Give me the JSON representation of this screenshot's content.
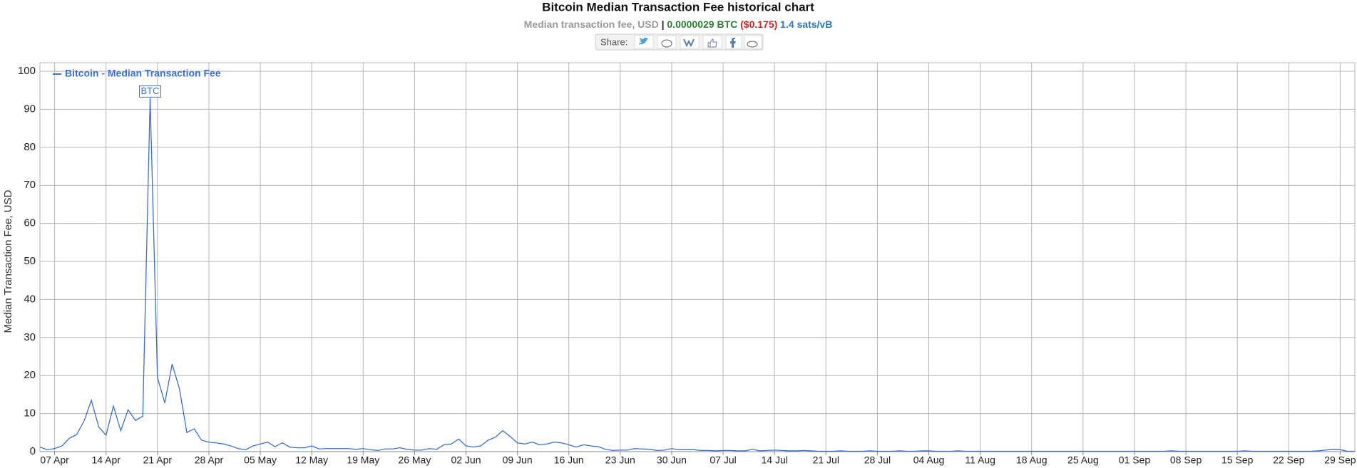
{
  "chart_data": {
    "type": "line",
    "title": "Bitcoin Median Transaction Fee historical chart",
    "subtitle": {
      "label": "Median transaction fee, USD",
      "separator": "|",
      "btc": "0.0000029 BTC",
      "usd": "($0.175)",
      "sats": "1.4 sats/vB"
    },
    "share": "Share:",
    "y_label": "Median Transaction Fee, USD",
    "annotation": "BTC",
    "categories": [
      null,
      null,
      "07 Apr",
      null,
      null,
      null,
      null,
      null,
      null,
      "14 Apr",
      null,
      null,
      null,
      null,
      null,
      null,
      "21 Apr",
      null,
      null,
      null,
      null,
      null,
      null,
      "28 Apr",
      null,
      null,
      null,
      null,
      null,
      null,
      "05 May",
      null,
      null,
      null,
      null,
      null,
      null,
      "12 May",
      null,
      null,
      null,
      null,
      null,
      null,
      "19 May",
      null,
      null,
      null,
      null,
      null,
      null,
      "26 May",
      null,
      null,
      null,
      null,
      null,
      null,
      "02 Jun",
      null,
      null,
      null,
      null,
      null,
      null,
      "09 Jun",
      null,
      null,
      null,
      null,
      null,
      null,
      "16 Jun",
      null,
      null,
      null,
      null,
      null,
      null,
      "23 Jun",
      null,
      null,
      null,
      null,
      null,
      null,
      "30 Jun",
      null,
      null,
      null,
      null,
      null,
      null,
      "07 Jul",
      null,
      null,
      null,
      null,
      null,
      null,
      "14 Jul",
      null,
      null,
      null,
      null,
      null,
      null,
      "21 Jul",
      null,
      null,
      null,
      null,
      null,
      null,
      "28 Jul",
      null,
      null,
      null,
      null,
      null,
      null,
      "04 Aug",
      null,
      null,
      null,
      null,
      null,
      null,
      "11 Aug",
      null,
      null,
      null,
      null,
      null,
      null,
      "18 Aug",
      null,
      null,
      null,
      null,
      null,
      null,
      "25 Aug",
      null,
      null,
      null,
      null,
      null,
      null,
      "01 Sep",
      null,
      null,
      null,
      null,
      null,
      null,
      "08 Sep",
      null,
      null,
      null,
      null,
      null,
      null,
      "15 Sep",
      null,
      null,
      null,
      null,
      null,
      null,
      "22 Sep",
      null,
      null,
      null,
      null,
      null,
      null,
      "29 Sep",
      null,
      null
    ],
    "series": [
      {
        "name": "Bitcoin - Median Transaction Fee",
        "color": "#3a6fd8",
        "values": [
          1.2,
          0.5,
          0.8,
          1.5,
          3.5,
          4.5,
          8,
          13.5,
          6.5,
          4.3,
          12,
          5.5,
          11,
          8.2,
          9.3,
          93,
          19.5,
          12.8,
          23,
          16.5,
          5,
          6,
          3,
          2.5,
          2.3,
          2,
          1.5,
          0.8,
          0.5,
          1.5,
          2,
          2.5,
          1.3,
          2.3,
          1.2,
          1,
          1,
          1.5,
          0.7,
          0.8,
          0.8,
          0.8,
          0.8,
          0.6,
          0.8,
          0.5,
          0.3,
          0.7,
          0.7,
          1,
          0.6,
          0.4,
          0.4,
          0.8,
          0.6,
          1.8,
          2,
          3.3,
          1.5,
          1.2,
          1.5,
          3,
          3.8,
          5.5,
          4,
          2.3,
          2,
          2.5,
          1.8,
          2,
          2.5,
          2.3,
          1.8,
          1.2,
          1.8,
          1.5,
          1.3,
          0.6,
          0.3,
          0.4,
          0.4,
          0.8,
          0.7,
          0.6,
          0.3,
          0.4,
          0.8,
          0.5,
          0.5,
          0.5,
          0.3,
          0.3,
          0.2,
          0.3,
          0.3,
          0.2,
          0.2,
          0.6,
          0.2,
          0.3,
          0.4,
          0.3,
          0.2,
          0.2,
          0.3,
          0.2,
          0.1,
          0.1,
          0.1,
          0.2,
          0.1,
          0.1,
          0.1,
          0.2,
          0.1,
          0.1,
          0.1,
          0.2,
          0.1,
          0.1,
          0.2,
          0.2,
          0.1,
          0.1,
          0.1,
          0.2,
          0.1,
          0.1,
          0.1,
          0.1,
          0.1,
          0.1,
          0.1,
          0.1,
          0.1,
          0.1,
          0.1,
          0.1,
          0.1,
          0.1,
          0.1,
          0.1,
          0.1,
          0.1,
          0.1,
          0.1,
          0.1,
          0.1,
          0.1,
          0.1,
          0.1,
          0.1,
          0.1,
          0.1,
          0.2,
          0.1,
          0.1,
          0.1,
          0.1,
          0.1,
          0.1,
          0.1,
          0.1,
          0.1,
          0.2,
          0.1,
          0.1,
          0.1,
          0.1,
          0.1,
          0.1,
          0.1,
          0.1,
          0.1,
          0.2,
          0.4,
          0.6,
          0.5,
          0.1,
          0.1
        ]
      }
    ],
    "ylim": [
      0,
      100
    ],
    "yticks": [
      0,
      10,
      20,
      30,
      40,
      50,
      60,
      70,
      80,
      90,
      100
    ],
    "grid": true,
    "legend": "top-left"
  }
}
